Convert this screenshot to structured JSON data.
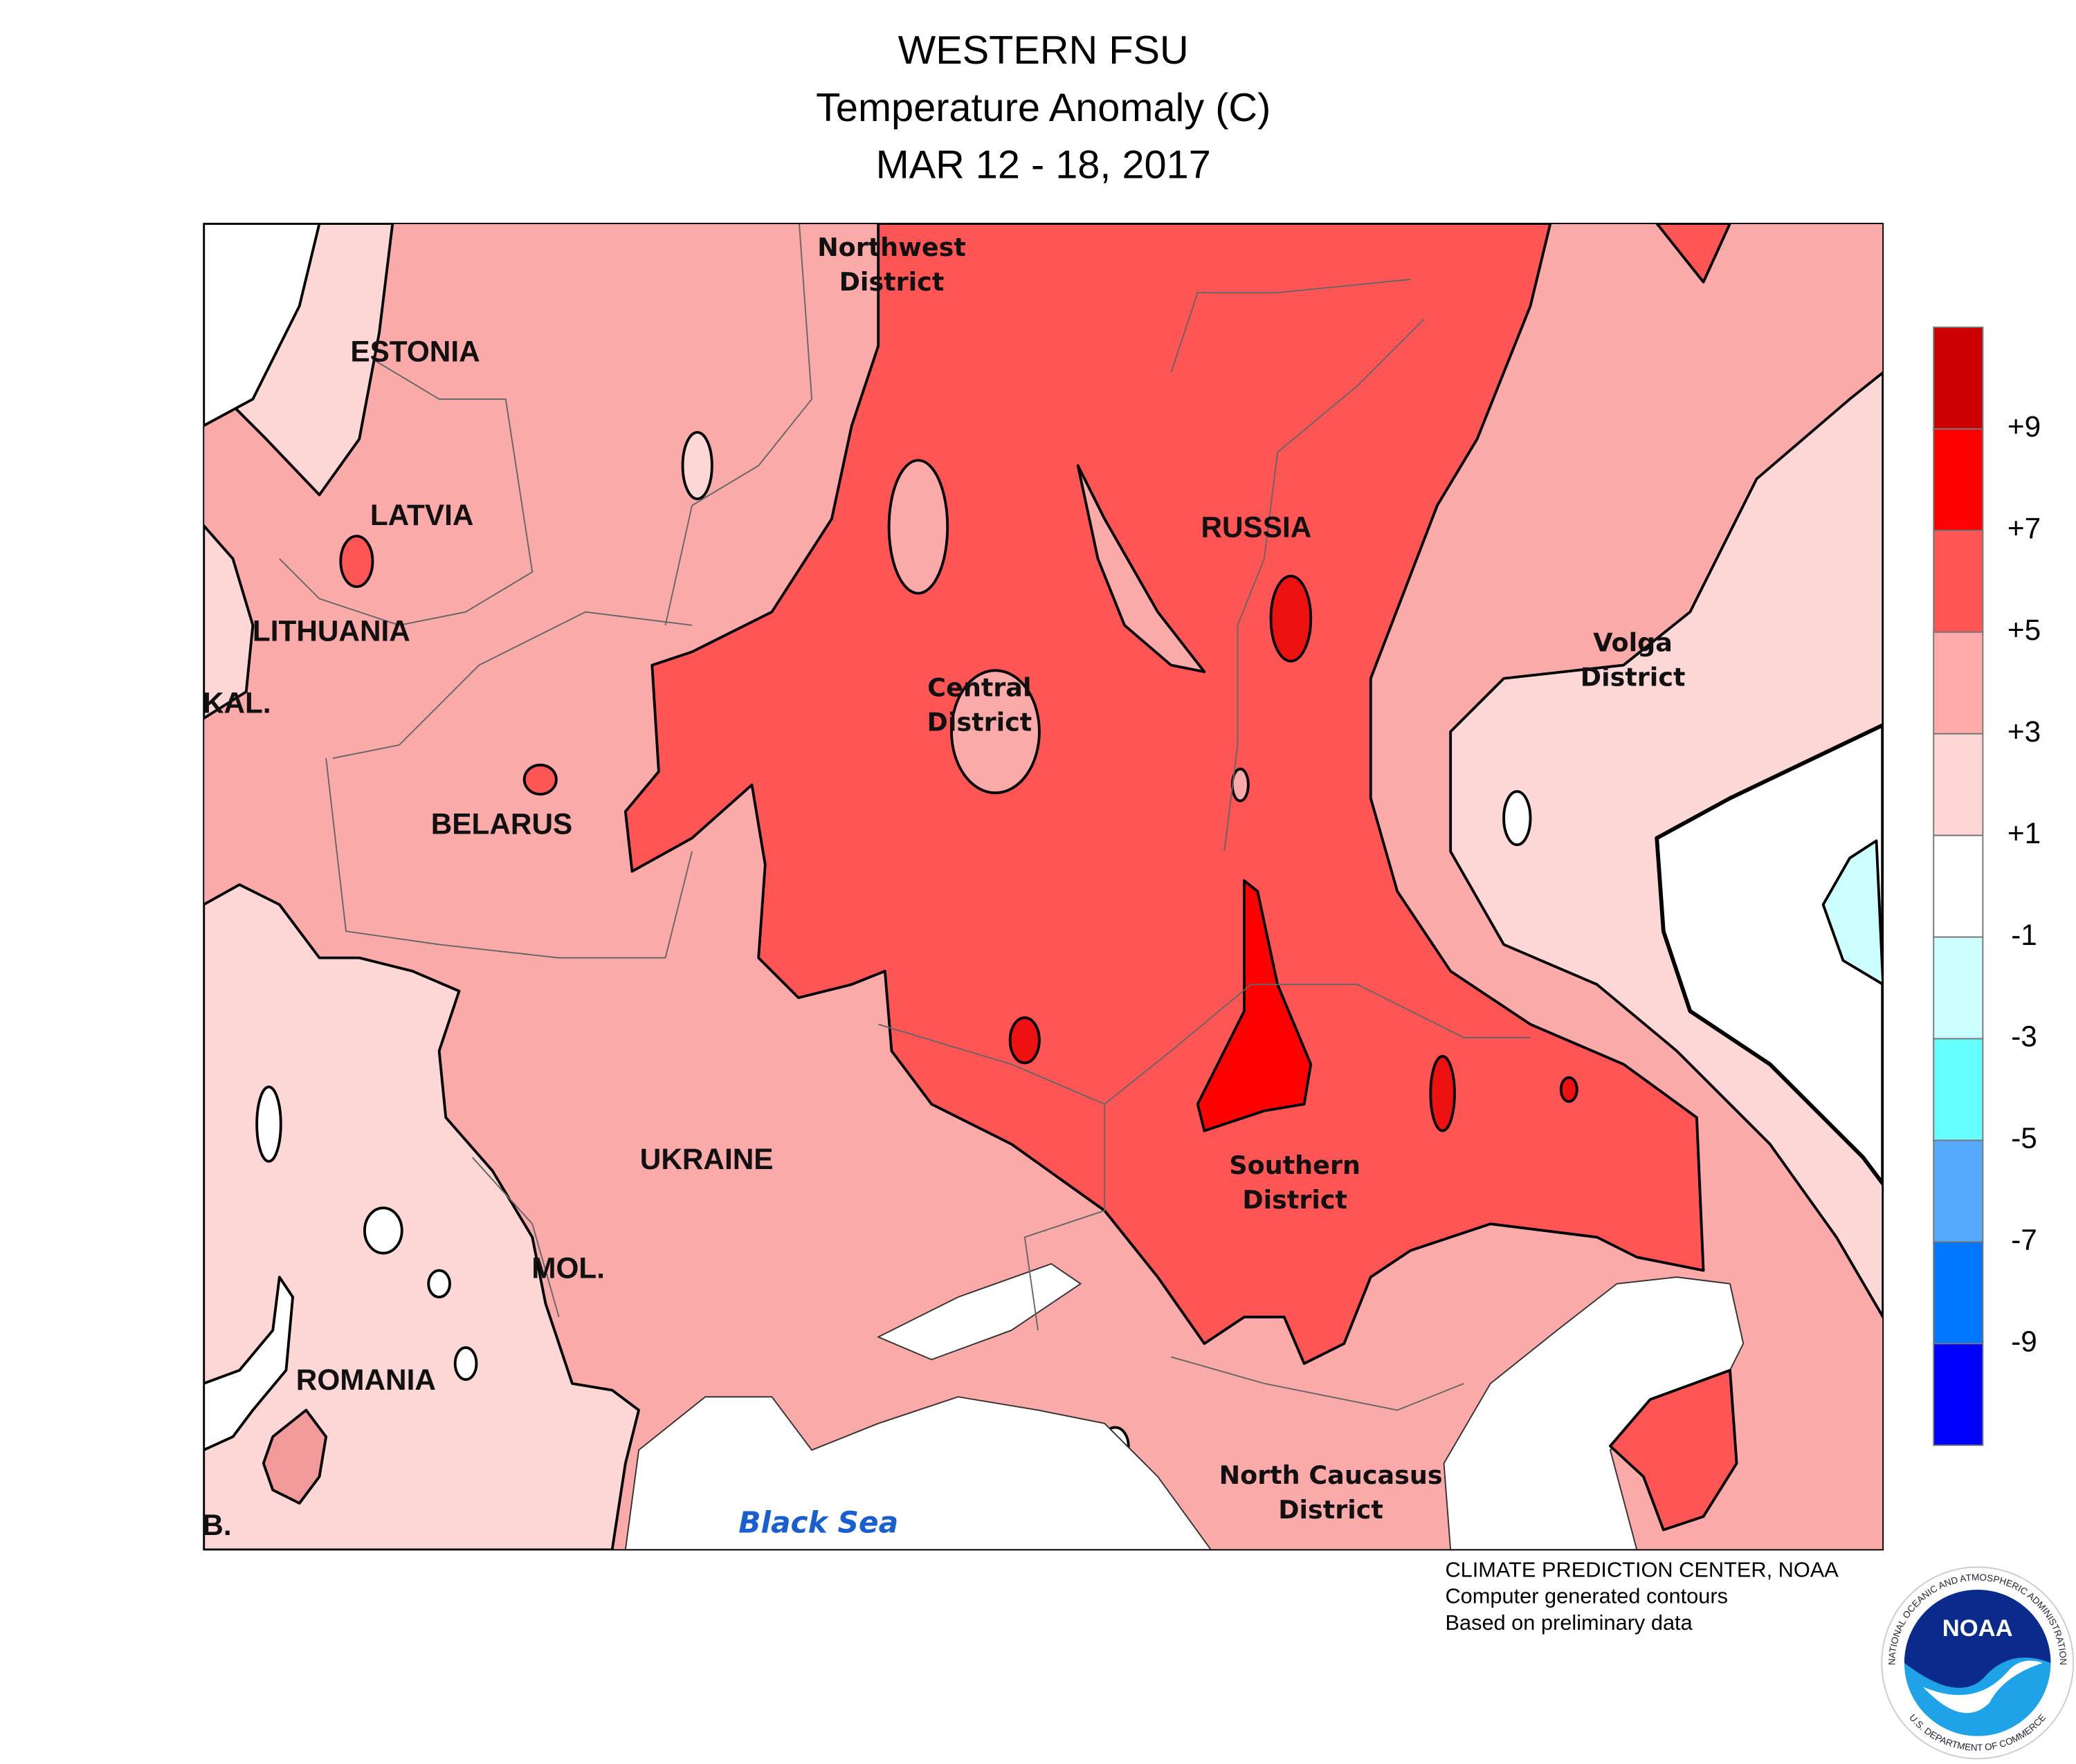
{
  "header": {
    "title": "WESTERN FSU",
    "subtitle": "Temperature Anomaly (C)",
    "date": "MAR 12 - 18, 2017"
  },
  "map": {
    "labels": [
      {
        "lines": [
          "ESTONIA"
        ]
      },
      {
        "lines": [
          "LATVIA"
        ]
      },
      {
        "lines": [
          "LITHUANIA"
        ]
      },
      {
        "lines": [
          "KAL."
        ]
      },
      {
        "lines": [
          "BELARUS"
        ]
      },
      {
        "lines": [
          "UKRAINE"
        ]
      },
      {
        "lines": [
          "MOL."
        ]
      },
      {
        "lines": [
          "ROMANIA"
        ]
      },
      {
        "lines": [
          "B."
        ]
      },
      {
        "lines": [
          "RUSSIA"
        ]
      },
      {
        "lines": [
          "Northwest",
          "District"
        ]
      },
      {
        "lines": [
          "Central",
          "District"
        ]
      },
      {
        "lines": [
          "Volga",
          "District"
        ]
      },
      {
        "lines": [
          "Southern",
          "District"
        ]
      },
      {
        "lines": [
          "North Caucasus",
          "District"
        ]
      },
      {
        "lines": [
          "Black Sea"
        ]
      }
    ]
  },
  "legend": {
    "colors": [
      "#cc0000",
      "#ff0000",
      "#ff5555",
      "#ffaaaa",
      "#ffd6d6",
      "#ffffff",
      "#ccffff",
      "#66ffff",
      "#55aaff",
      "#0077ff",
      "#0000ff"
    ],
    "labels": [
      "+9",
      "+7",
      "+5",
      "+3",
      "+1",
      "-1",
      "-3",
      "-5",
      "-7",
      "-9"
    ]
  },
  "credits": [
    "CLIMATE PREDICTION CENTER, NOAA",
    "Computer generated contours",
    "Based on preliminary data"
  ],
  "logo": {
    "name": "NOAA",
    "ring_top": "NATIONAL OCEANIC AND ATMOSPHERIC ADMINISTRATION",
    "ring_bottom": "U.S. DEPARTMENT OF COMMERCE"
  }
}
